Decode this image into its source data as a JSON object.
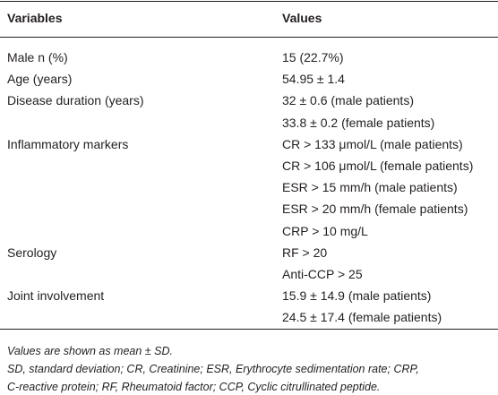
{
  "table": {
    "header": [
      "Variables",
      "Values"
    ],
    "rows": [
      {
        "variable": "Male n (%)",
        "values": [
          "15 (22.7%)"
        ]
      },
      {
        "variable": "Age (years)",
        "values": [
          "54.95 ± 1.4"
        ]
      },
      {
        "variable": "Disease duration (years)",
        "values": [
          "32 ± 0.6 (male patients)",
          "33.8 ± 0.2 (female patients)"
        ]
      },
      {
        "variable": "Inflammatory markers",
        "values": [
          "CR > 133 μmol/L (male patients)",
          "CR > 106 μmol/L (female patients)",
          "ESR > 15 mm/h (male patients)",
          "ESR > 20 mm/h (female patients)",
          "CRP > 10 mg/L"
        ]
      },
      {
        "variable": "Serology",
        "values": [
          "RF > 20",
          "Anti-CCP > 25"
        ]
      },
      {
        "variable": "Joint involvement",
        "values": [
          "15.9 ± 14.9 (male patients)",
          "24.5 ± 17.4 (female patients)"
        ]
      }
    ],
    "notes": [
      "Values are shown as mean ± SD.",
      "SD, standard deviation; CR, Creatinine; ESR, Erythrocyte sedimentation rate; CRP,",
      "C-reactive protein; RF, Rheumatoid factor; CCP, Cyclic citrullinated peptide."
    ]
  }
}
